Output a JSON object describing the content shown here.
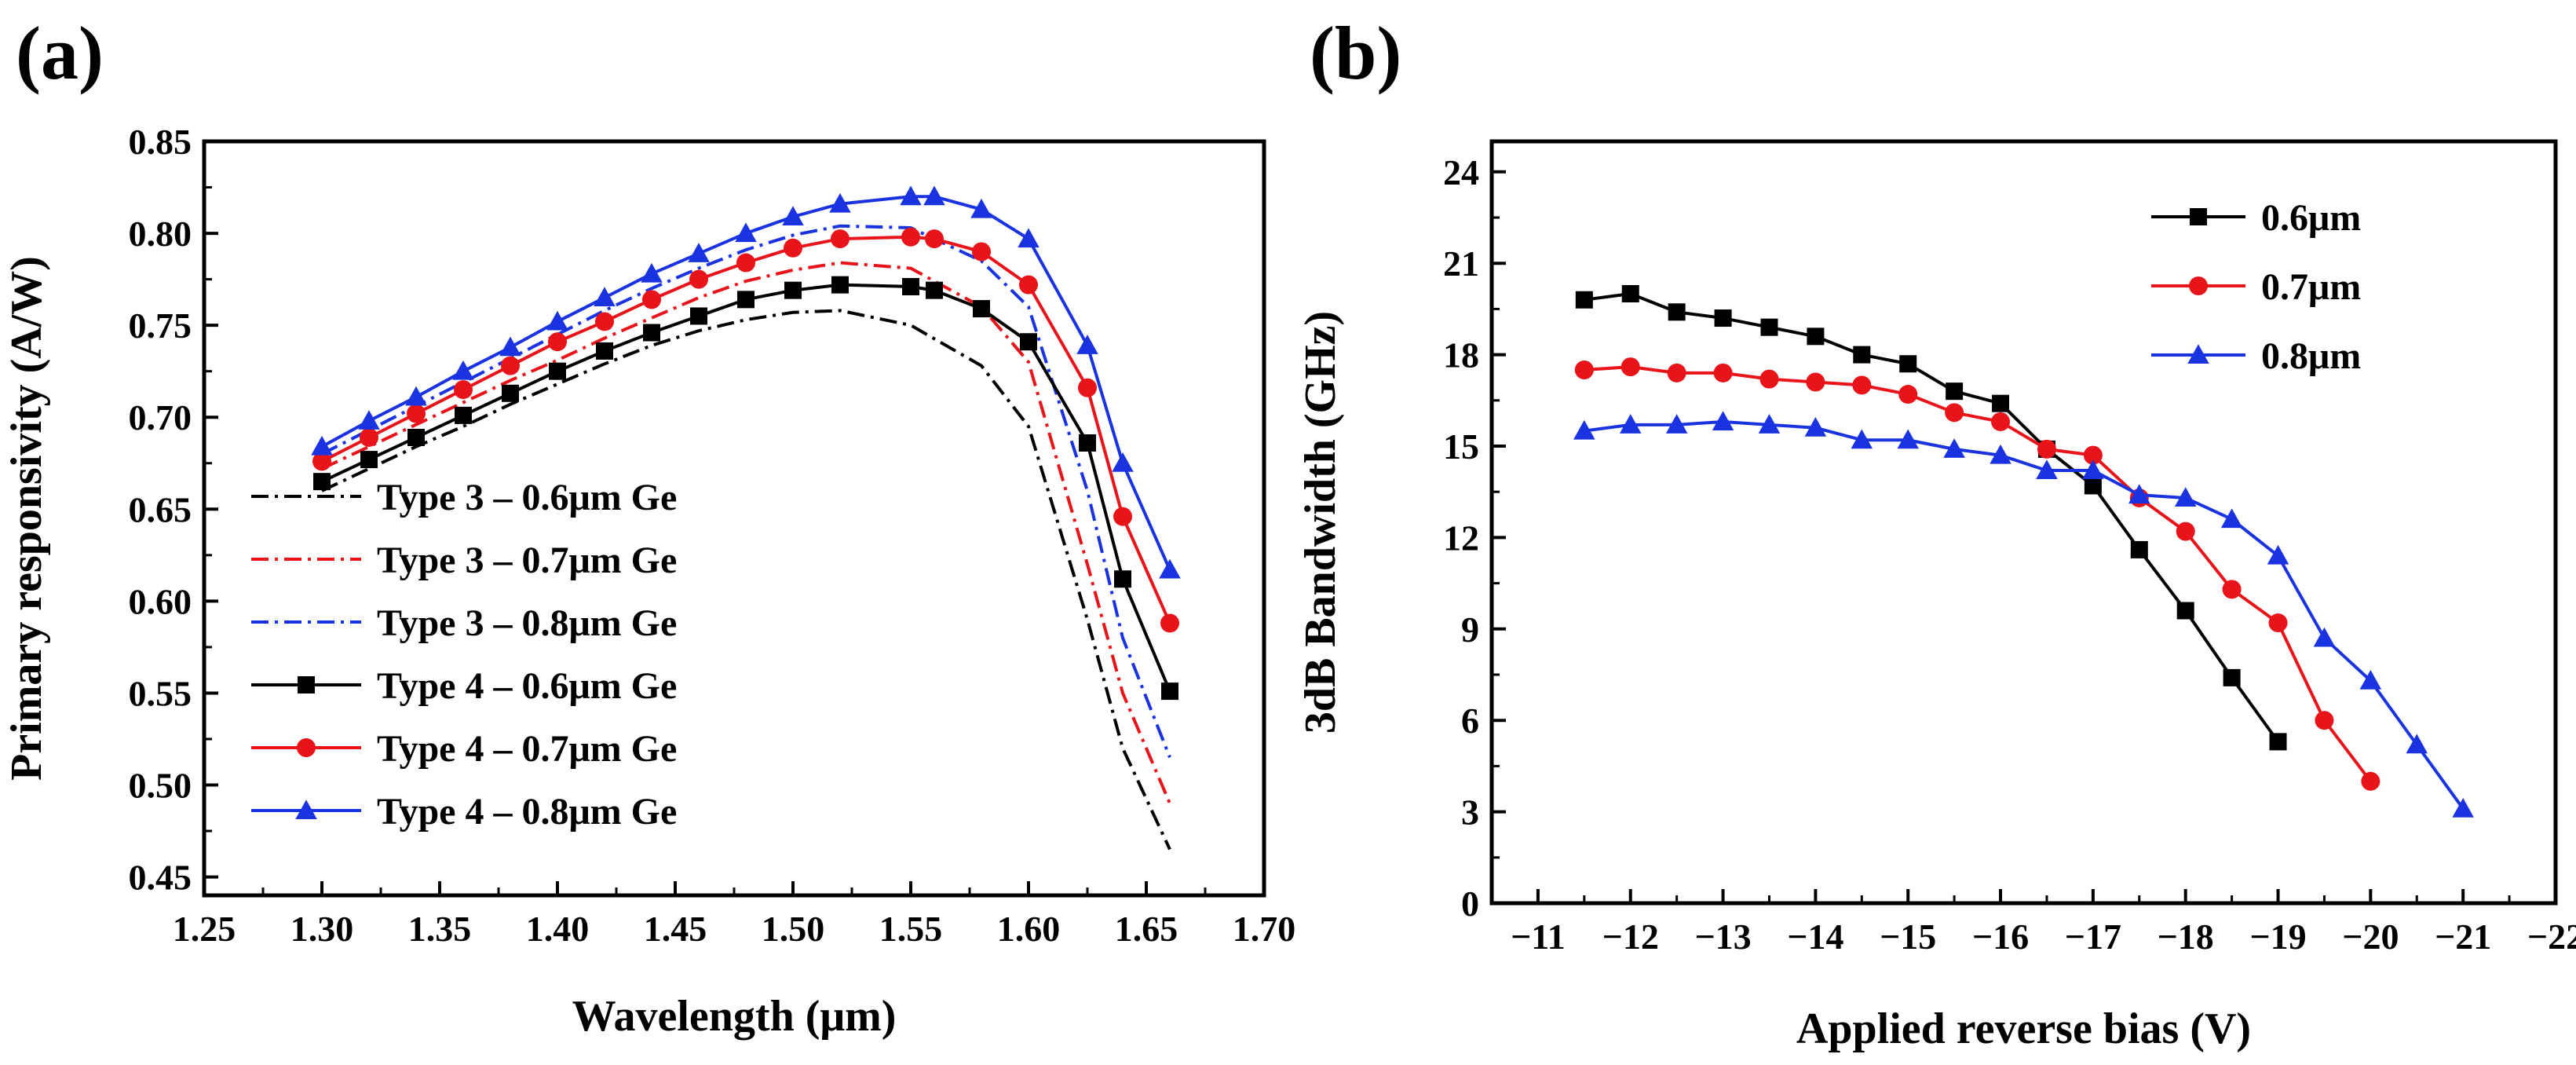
{
  "chart_data": [
    {
      "type": "line",
      "panel_label": "(a)",
      "xlabel": "Wavelength (μm)",
      "ylabel": "Primary responsivity (A/W)",
      "xlim": [
        1.25,
        1.7
      ],
      "ylim": [
        0.44,
        0.85
      ],
      "xticks": [
        "1.25",
        "1.30",
        "1.35",
        "1.40",
        "1.45",
        "1.50",
        "1.55",
        "1.60",
        "1.65",
        "1.70"
      ],
      "yticks": [
        "0.45",
        "0.50",
        "0.55",
        "0.60",
        "0.65",
        "0.70",
        "0.75",
        "0.80",
        "0.85"
      ],
      "legend_position": "lower-left",
      "grid": false,
      "series": [
        {
          "name": "Type 3 – 0.6μm Ge",
          "color": "#000000",
          "style": "dashdot",
          "marker": "none",
          "x": [
            1.3,
            1.32,
            1.34,
            1.36,
            1.38,
            1.4,
            1.42,
            1.44,
            1.46,
            1.48,
            1.5,
            1.52,
            1.55,
            1.58,
            1.6,
            1.625,
            1.64,
            1.66
          ],
          "y": [
            0.66,
            0.672,
            0.684,
            0.695,
            0.707,
            0.718,
            0.729,
            0.739,
            0.747,
            0.753,
            0.757,
            0.758,
            0.75,
            0.728,
            0.695,
            0.59,
            0.52,
            0.465
          ]
        },
        {
          "name": "Type 3 – 0.7μm Ge",
          "color": "#e8141a",
          "style": "dashdot",
          "marker": "none",
          "x": [
            1.3,
            1.32,
            1.34,
            1.36,
            1.38,
            1.4,
            1.42,
            1.44,
            1.46,
            1.48,
            1.5,
            1.52,
            1.55,
            1.58,
            1.6,
            1.625,
            1.64,
            1.66
          ],
          "y": [
            0.672,
            0.684,
            0.696,
            0.708,
            0.72,
            0.731,
            0.743,
            0.754,
            0.765,
            0.774,
            0.78,
            0.784,
            0.781,
            0.76,
            0.73,
            0.62,
            0.55,
            0.49
          ]
        },
        {
          "name": "Type 3 – 0.8μm Ge",
          "color": "#1a33e0",
          "style": "dashdot",
          "marker": "none",
          "x": [
            1.3,
            1.32,
            1.34,
            1.36,
            1.38,
            1.4,
            1.42,
            1.44,
            1.46,
            1.48,
            1.5,
            1.52,
            1.55,
            1.58,
            1.6,
            1.625,
            1.64,
            1.66
          ],
          "y": [
            0.68,
            0.693,
            0.706,
            0.719,
            0.732,
            0.745,
            0.758,
            0.77,
            0.781,
            0.791,
            0.799,
            0.804,
            0.803,
            0.785,
            0.76,
            0.66,
            0.58,
            0.515
          ]
        },
        {
          "name": "Type 4 – 0.6μm Ge",
          "color": "#000000",
          "style": "solid",
          "marker": "square",
          "x": [
            1.3,
            1.32,
            1.34,
            1.36,
            1.38,
            1.4,
            1.42,
            1.44,
            1.46,
            1.48,
            1.5,
            1.52,
            1.55,
            1.56,
            1.58,
            1.6,
            1.625,
            1.64,
            1.66
          ],
          "y": [
            0.665,
            0.677,
            0.689,
            0.701,
            0.713,
            0.725,
            0.736,
            0.746,
            0.755,
            0.764,
            0.769,
            0.772,
            0.771,
            0.769,
            0.759,
            0.741,
            0.686,
            0.612,
            0.551
          ]
        },
        {
          "name": "Type 4 – 0.7μm Ge",
          "color": "#e8141a",
          "style": "solid",
          "marker": "circle",
          "x": [
            1.3,
            1.32,
            1.34,
            1.36,
            1.38,
            1.4,
            1.42,
            1.44,
            1.46,
            1.48,
            1.5,
            1.52,
            1.55,
            1.56,
            1.58,
            1.6,
            1.625,
            1.64,
            1.66
          ],
          "y": [
            0.676,
            0.689,
            0.702,
            0.715,
            0.728,
            0.741,
            0.752,
            0.764,
            0.775,
            0.784,
            0.792,
            0.797,
            0.798,
            0.797,
            0.79,
            0.772,
            0.716,
            0.646,
            0.588
          ]
        },
        {
          "name": "Type 4 – 0.8μm Ge",
          "color": "#1a33e0",
          "style": "solid",
          "marker": "triangle",
          "x": [
            1.3,
            1.32,
            1.34,
            1.36,
            1.38,
            1.4,
            1.42,
            1.44,
            1.46,
            1.48,
            1.5,
            1.52,
            1.55,
            1.56,
            1.58,
            1.6,
            1.625,
            1.64,
            1.66
          ],
          "y": [
            0.684,
            0.698,
            0.711,
            0.725,
            0.738,
            0.752,
            0.765,
            0.778,
            0.789,
            0.8,
            0.809,
            0.816,
            0.82,
            0.82,
            0.813,
            0.797,
            0.739,
            0.675,
            0.617
          ]
        }
      ]
    },
    {
      "type": "line",
      "panel_label": "(b)",
      "xlabel": "Applied reverse bias (V)",
      "ylabel": "3dB Bandwidth (GHz)",
      "xlim": [
        -10.5,
        -22
      ],
      "ylim": [
        0,
        25
      ],
      "xticks": [
        "−11",
        "−12",
        "−13",
        "−14",
        "−15",
        "−16",
        "−17",
        "−18",
        "−19",
        "−20",
        "−21",
        "−22"
      ],
      "yticks": [
        "0",
        "3",
        "6",
        "9",
        "12",
        "15",
        "18",
        "21",
        "24"
      ],
      "legend_position": "top-right",
      "grid": false,
      "series": [
        {
          "name": "0.6μm",
          "color": "#000000",
          "style": "solid",
          "marker": "square",
          "x": [
            -11.5,
            -12,
            -12.5,
            -13,
            -13.5,
            -14,
            -14.5,
            -15,
            -15.5,
            -16,
            -16.5,
            -17,
            -17.5,
            -18,
            -18.5,
            -19
          ],
          "y": [
            19.8,
            20.0,
            19.4,
            19.2,
            18.9,
            18.6,
            18.0,
            17.7,
            16.8,
            16.4,
            14.9,
            13.7,
            11.6,
            9.6,
            7.4,
            5.3
          ]
        },
        {
          "name": "0.7μm",
          "color": "#e8141a",
          "style": "solid",
          "marker": "circle",
          "x": [
            -11.5,
            -12,
            -12.5,
            -13,
            -13.5,
            -14,
            -14.5,
            -15,
            -15.5,
            -16,
            -16.5,
            -17,
            -17.5,
            -18,
            -18.5,
            -19,
            -19.5,
            -20
          ],
          "y": [
            17.5,
            17.6,
            17.4,
            17.4,
            17.2,
            17.1,
            17.0,
            16.7,
            16.1,
            15.8,
            14.9,
            14.7,
            13.3,
            12.2,
            10.3,
            9.2,
            6.0,
            4.0
          ]
        },
        {
          "name": "0.8μm",
          "color": "#1a33e0",
          "style": "solid",
          "marker": "triangle",
          "x": [
            -11.5,
            -12,
            -12.5,
            -13,
            -13.5,
            -14,
            -14.5,
            -15,
            -15.5,
            -16,
            -16.5,
            -17,
            -17.5,
            -18,
            -18.5,
            -19,
            -19.5,
            -20,
            -20.5,
            -21
          ],
          "y": [
            15.5,
            15.7,
            15.7,
            15.8,
            15.7,
            15.6,
            15.2,
            15.2,
            14.9,
            14.7,
            14.2,
            14.2,
            13.4,
            13.3,
            12.6,
            11.4,
            8.7,
            7.3,
            5.2,
            3.1
          ]
        }
      ]
    }
  ]
}
